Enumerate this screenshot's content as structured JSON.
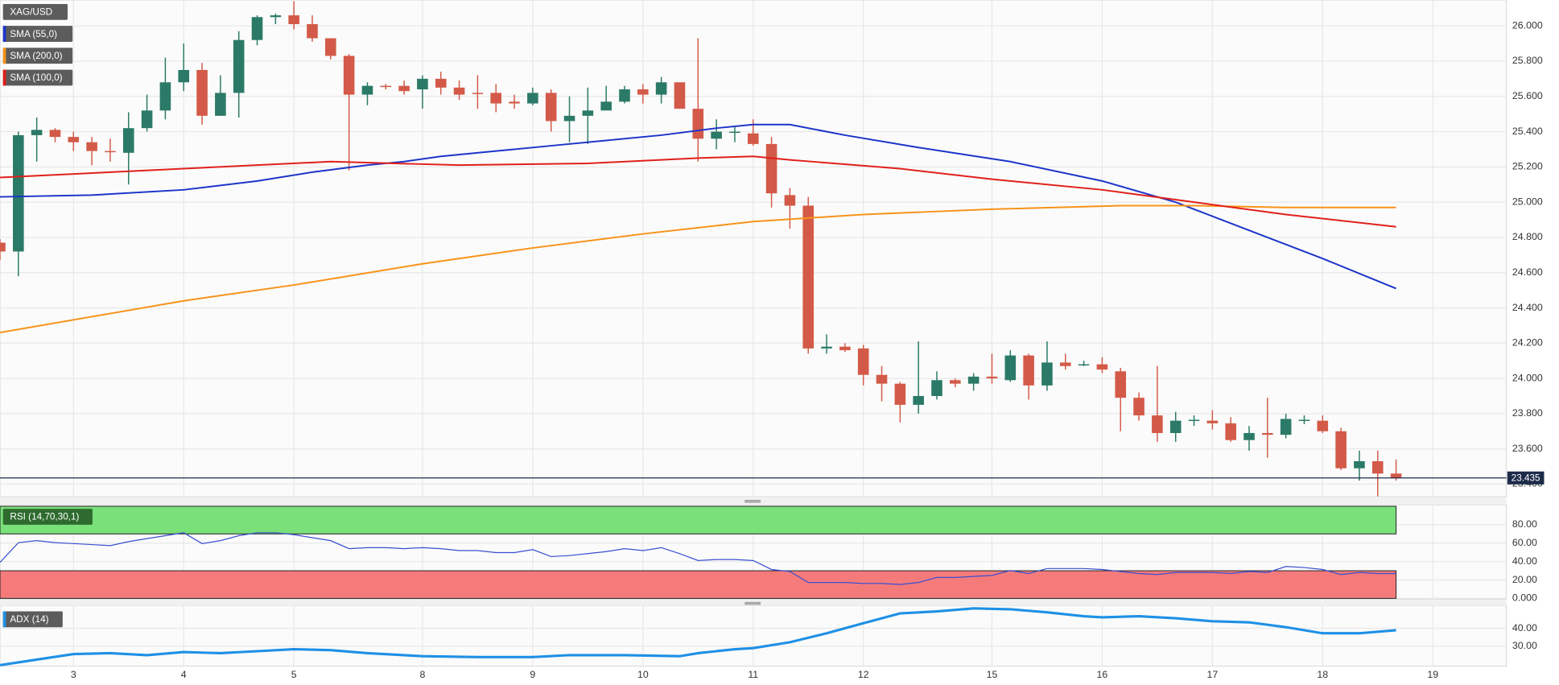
{
  "chart_data": [
    {
      "type": "candlestick",
      "title": "XAG/USD",
      "up_color": "#2b7a67",
      "down_color": "#d35a48",
      "open": [
        24.77,
        24.72,
        25.38,
        25.41,
        25.37,
        25.34,
        25.29,
        25.28,
        25.42,
        25.52,
        25.68,
        25.75,
        25.49,
        25.62,
        25.92,
        26.05,
        26.06,
        26.01,
        25.93,
        25.83,
        25.61,
        25.66,
        25.66,
        25.64,
        25.7,
        25.65,
        25.62,
        25.62,
        25.57,
        25.56,
        25.62,
        25.46,
        25.49,
        25.52,
        25.57,
        25.64,
        25.61,
        25.68,
        25.53,
        25.36,
        25.395,
        25.39,
        25.33,
        25.04,
        24.98,
        24.17,
        24.18,
        24.17,
        24.02,
        23.97,
        23.85,
        23.9,
        23.99,
        23.97,
        24.01,
        23.99,
        24.13,
        23.96,
        24.09,
        24.08,
        24.08,
        24.04,
        23.89,
        23.79,
        23.69,
        23.76,
        23.76,
        23.745,
        23.65,
        23.69,
        23.68,
        23.76,
        23.76,
        23.7,
        23.49,
        23.53,
        23.46
      ],
      "high": [
        24.79,
        25.4,
        25.48,
        25.42,
        25.4,
        25.37,
        25.36,
        25.51,
        25.61,
        25.82,
        25.9,
        25.79,
        25.72,
        25.97,
        26.06,
        26.07,
        26.14,
        26.06,
        25.93,
        25.84,
        25.68,
        25.67,
        25.69,
        25.72,
        25.74,
        25.69,
        25.72,
        25.67,
        25.61,
        25.65,
        25.64,
        25.6,
        25.65,
        25.66,
        25.66,
        25.67,
        25.71,
        25.68,
        25.93,
        25.47,
        25.43,
        25.47,
        25.37,
        25.08,
        25.03,
        24.25,
        24.2,
        24.19,
        24.07,
        23.98,
        24.21,
        24.04,
        24.0,
        24.03,
        24.14,
        24.16,
        24.14,
        24.21,
        24.14,
        24.1,
        24.12,
        24.06,
        23.92,
        24.07,
        23.81,
        23.79,
        23.82,
        23.78,
        23.73,
        23.89,
        23.8,
        23.79,
        23.79,
        23.72,
        23.59,
        23.59,
        23.54
      ],
      "low": [
        24.67,
        24.58,
        25.23,
        25.34,
        25.29,
        25.21,
        25.23,
        25.1,
        25.4,
        25.47,
        25.63,
        25.44,
        25.49,
        25.48,
        25.89,
        26.01,
        25.98,
        25.91,
        25.81,
        25.18,
        25.55,
        25.64,
        25.61,
        25.53,
        25.61,
        25.58,
        25.53,
        25.51,
        25.53,
        25.55,
        25.4,
        25.34,
        25.33,
        25.53,
        25.56,
        25.56,
        25.56,
        25.53,
        25.23,
        25.3,
        25.34,
        25.32,
        24.97,
        24.85,
        24.14,
        24.14,
        24.15,
        23.96,
        23.87,
        23.75,
        23.8,
        23.88,
        23.95,
        23.93,
        23.97,
        23.98,
        23.88,
        23.93,
        24.05,
        24.07,
        24.03,
        23.7,
        23.76,
        23.64,
        23.64,
        23.73,
        23.71,
        23.64,
        23.59,
        23.55,
        23.66,
        23.74,
        23.69,
        23.48,
        23.42,
        23.33,
        23.42
      ],
      "close": [
        24.72,
        25.38,
        25.41,
        25.37,
        25.34,
        25.29,
        25.285,
        25.42,
        25.52,
        25.68,
        25.75,
        25.49,
        25.62,
        25.92,
        26.05,
        26.06,
        26.01,
        25.93,
        25.83,
        25.61,
        25.66,
        25.655,
        25.63,
        25.7,
        25.65,
        25.61,
        25.615,
        25.56,
        25.56,
        25.62,
        25.46,
        25.49,
        25.52,
        25.57,
        25.64,
        25.61,
        25.68,
        25.53,
        25.36,
        25.4,
        25.4,
        25.33,
        25.05,
        24.98,
        24.17,
        24.18,
        24.16,
        24.02,
        23.97,
        23.85,
        23.9,
        23.99,
        23.97,
        24.01,
        24.0,
        24.13,
        23.96,
        24.09,
        24.07,
        24.08,
        24.05,
        23.89,
        23.79,
        23.69,
        23.76,
        23.765,
        23.745,
        23.65,
        23.69,
        23.68,
        23.77,
        23.765,
        23.7,
        23.49,
        23.53,
        23.46,
        23.435
      ],
      "series": [
        {
          "name": "SMA (55,0)",
          "color": "#1c35c9",
          "x": [
            0,
            5,
            10,
            14,
            17,
            20,
            22,
            24,
            27,
            30,
            33,
            36,
            39,
            41,
            43,
            46,
            50,
            55,
            60,
            64,
            68,
            72,
            76
          ],
          "values": [
            25.03,
            25.04,
            25.07,
            25.12,
            25.17,
            25.21,
            25.23,
            25.26,
            25.29,
            25.32,
            25.35,
            25.38,
            25.42,
            25.44,
            25.44,
            25.38,
            25.31,
            25.23,
            25.12,
            25.0,
            24.84,
            24.68,
            24.51
          ]
        },
        {
          "name": "SMA (200,0)",
          "color": "#f7931a",
          "x": [
            0,
            10,
            16,
            23,
            29,
            35,
            41,
            47,
            54,
            61,
            65,
            70,
            76
          ],
          "values": [
            24.26,
            24.44,
            24.53,
            24.65,
            24.74,
            24.82,
            24.89,
            24.93,
            24.96,
            24.98,
            24.98,
            24.97,
            24.97
          ]
        },
        {
          "name": "SMA (100,0)",
          "color": "#e0201b",
          "x": [
            0,
            10,
            18,
            25,
            32,
            38,
            41,
            43,
            49,
            54,
            60,
            65,
            70,
            76
          ],
          "values": [
            25.14,
            25.19,
            25.23,
            25.21,
            25.22,
            25.25,
            25.26,
            25.24,
            25.19,
            25.13,
            25.07,
            25.0,
            24.93,
            24.86
          ]
        }
      ],
      "last_price": 23.435,
      "last_price_color": "#1c2b4a",
      "xlim": [
        0,
        82
      ],
      "xticks": [
        {
          "value": 4,
          "label": "3"
        },
        {
          "value": 10,
          "label": "4"
        },
        {
          "value": 16,
          "label": "5"
        },
        {
          "value": 23,
          "label": "8"
        },
        {
          "value": 29,
          "label": "9"
        },
        {
          "value": 35,
          "label": "10"
        },
        {
          "value": 41,
          "label": "11"
        },
        {
          "value": 47,
          "label": "12"
        },
        {
          "value": 54,
          "label": "15"
        },
        {
          "value": 60,
          "label": "16"
        },
        {
          "value": 66,
          "label": "17"
        },
        {
          "value": 72,
          "label": "18"
        },
        {
          "value": 78,
          "label": "19"
        }
      ],
      "ylim": [
        23.328,
        26.147
      ],
      "yticks": [
        {
          "value": 23.4,
          "label": "23.400"
        },
        {
          "value": 23.6,
          "label": "23.600"
        },
        {
          "value": 23.8,
          "label": "23.800"
        },
        {
          "value": 24.0,
          "label": "24.000"
        },
        {
          "value": 24.2,
          "label": "24.200"
        },
        {
          "value": 24.4,
          "label": "24.400"
        },
        {
          "value": 24.6,
          "label": "24.600"
        },
        {
          "value": 24.8,
          "label": "24.800"
        },
        {
          "value": 25.0,
          "label": "25.000"
        },
        {
          "value": 25.2,
          "label": "25.200"
        },
        {
          "value": 25.4,
          "label": "25.400"
        },
        {
          "value": 25.6,
          "label": "25.600"
        },
        {
          "value": 25.8,
          "label": "25.800"
        },
        {
          "value": 26.0,
          "label": "26.000"
        }
      ],
      "grid": true
    },
    {
      "type": "line",
      "title": "RSI (14,70,30,1)",
      "color": "#3a4fd0",
      "values": [
        39,
        60.5,
        62.7,
        60.5,
        59.5,
        58.4,
        57.3,
        61.6,
        64.9,
        68.1,
        71.3,
        59.5,
        62.7,
        68.1,
        71.3,
        71.3,
        69.2,
        65.9,
        62.7,
        54,
        55.1,
        55.1,
        54,
        55.1,
        54,
        51.9,
        51.9,
        49.7,
        49.7,
        53,
        45.4,
        46.5,
        48.6,
        50.8,
        54,
        51.9,
        55.1,
        48.6,
        41.1,
        42.2,
        42.2,
        41.1,
        31.4,
        29.2,
        17.3,
        17.3,
        17.3,
        16.2,
        16.2,
        15.1,
        17.3,
        22.7,
        22.7,
        23.8,
        24.9,
        30.3,
        27,
        32.4,
        32.4,
        32.4,
        31.4,
        29.2,
        27,
        25.9,
        28.1,
        28.1,
        28.1,
        27,
        29.2,
        28.1,
        34.6,
        33.5,
        31.4,
        25.9,
        28.1,
        27,
        27
      ],
      "bands": [
        {
          "from": 70,
          "to": 100,
          "color": "#7ae07a"
        },
        {
          "from": 0,
          "to": 30,
          "color": "#f57b7b"
        }
      ],
      "ylim": [
        0,
        100
      ],
      "yticks": [
        {
          "value": 0,
          "label": "0.000"
        },
        {
          "value": 20,
          "label": "20.00"
        },
        {
          "value": 40,
          "label": "40.00"
        },
        {
          "value": 60,
          "label": "60.00"
        },
        {
          "value": 80,
          "label": "80.00"
        }
      ],
      "grid": true
    },
    {
      "type": "line",
      "series": [
        {
          "name": "ADX (14)",
          "color": "#1e90e6",
          "x": [
            0,
            4,
            6,
            8,
            10,
            12,
            14,
            16,
            18,
            20,
            23,
            26,
            29,
            31,
            34,
            37,
            38,
            40,
            41,
            43,
            45,
            47,
            49,
            51,
            53,
            55,
            57,
            59,
            60,
            62,
            64,
            66,
            68,
            70,
            72,
            74,
            76
          ],
          "values": [
            19.4,
            25.6,
            26.1,
            25,
            26.7,
            26.1,
            27.2,
            28.3,
            27.8,
            26.1,
            24.4,
            23.9,
            23.9,
            25,
            25,
            24.4,
            26.1,
            28.3,
            28.9,
            32.2,
            37.2,
            42.8,
            48.3,
            49.4,
            51.1,
            50.6,
            48.9,
            46.7,
            46.1,
            46.7,
            45.6,
            43.9,
            43.3,
            40.6,
            37.2,
            37.2,
            38.9
          ]
        }
      ],
      "ylim": [
        19,
        52
      ],
      "yticks": [
        {
          "value": 30,
          "label": "30.00"
        },
        {
          "value": 40,
          "label": "40.00"
        }
      ],
      "grid": true
    }
  ]
}
